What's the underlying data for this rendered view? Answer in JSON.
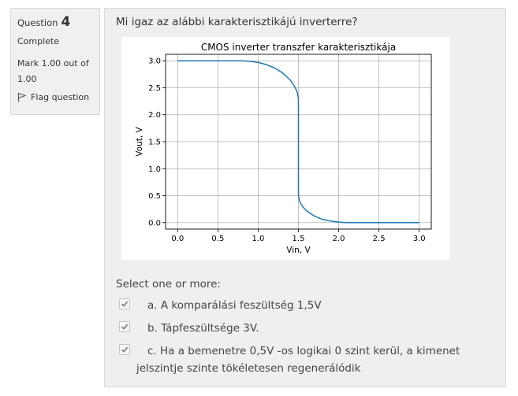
{
  "question_info": {
    "label": "Question",
    "number": "4",
    "state": "Complete",
    "grade": "Mark 1.00 out of 1.00",
    "flag_label": "Flag question",
    "flag_icon": "flag-icon"
  },
  "question": {
    "text": "Mi igaz az alábbi karakterisztikájú inverterre?",
    "prompt": "Select one or more:",
    "options": [
      {
        "letter": "a.",
        "text": "A komparálási feszültség 1,5V",
        "checked": true
      },
      {
        "letter": "b.",
        "text": "Tápfeszültsége 3V.",
        "checked": true
      },
      {
        "letter": "c.",
        "text": "Ha a bemenetre 0,5V -os logikai 0 szint kerül, a kimenet",
        "text2": "jelszintje szinte tökéletesen regenerálódik",
        "checked": true
      }
    ]
  },
  "chart_data": {
    "type": "line",
    "title": "CMOS inverter transzfer karakterisztikája",
    "xlabel": "Vin, V",
    "ylabel": "Vout, V",
    "xlim": [
      -0.15,
      3.15
    ],
    "ylim": [
      -0.12,
      3.12
    ],
    "xticks": [
      0.0,
      0.5,
      1.0,
      1.5,
      2.0,
      2.5,
      3.0
    ],
    "xtick_labels": [
      "0.0",
      "0.5",
      "1.0",
      "1.5",
      "2.0",
      "2.5",
      "3.0"
    ],
    "yticks": [
      0.0,
      0.5,
      1.0,
      1.5,
      2.0,
      2.5,
      3.0
    ],
    "ytick_labels": [
      "0.0",
      "0.5",
      "1.0",
      "1.5",
      "2.0",
      "2.5",
      "3.0"
    ],
    "grid": true,
    "line_color": "#1f77b4",
    "series": [
      {
        "x": [
          0.0,
          0.5,
          0.8,
          0.9,
          1.0,
          1.1,
          1.2,
          1.3,
          1.4,
          1.45,
          1.48,
          1.49,
          1.5,
          1.5,
          1.51,
          1.52,
          1.55,
          1.6,
          1.7,
          1.8,
          1.9,
          2.0,
          2.1,
          2.2,
          2.5,
          3.0
        ],
        "y": [
          3.0,
          3.0,
          3.0,
          2.99,
          2.97,
          2.93,
          2.87,
          2.78,
          2.64,
          2.53,
          2.44,
          2.38,
          2.3,
          0.5,
          0.43,
          0.38,
          0.3,
          0.22,
          0.12,
          0.06,
          0.03,
          0.01,
          0.0,
          0.0,
          0.0,
          0.0
        ]
      }
    ]
  }
}
